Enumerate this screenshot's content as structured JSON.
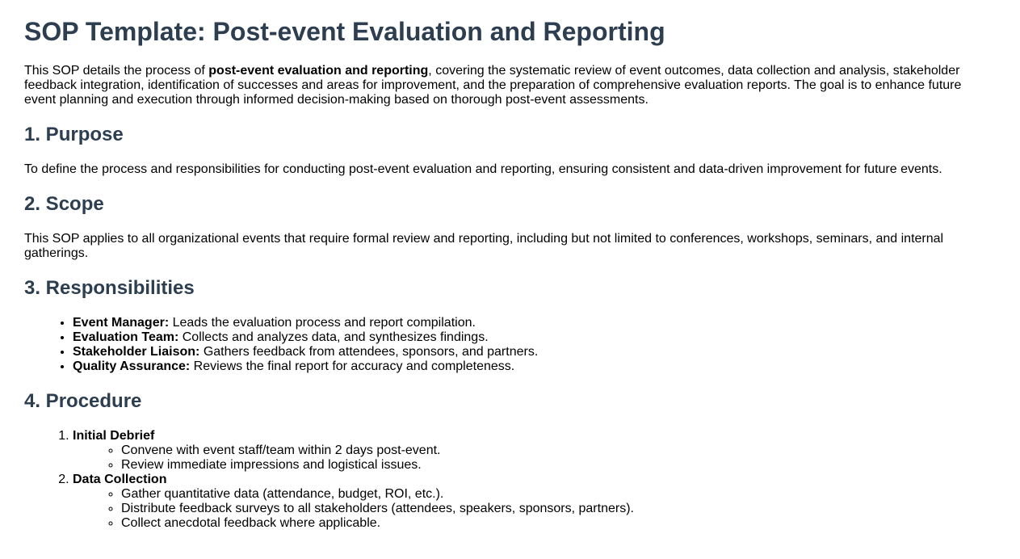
{
  "title": "SOP Template: Post-event Evaluation and Reporting",
  "intro": {
    "before": "This SOP details the process of ",
    "bold": "post-event evaluation and reporting",
    "after": ", covering the systematic review of event outcomes, data collection and analysis, stakeholder feedback integration, identification of successes and areas for improvement, and the preparation of comprehensive evaluation reports. The goal is to enhance future event planning and execution through informed decision-making based on thorough post-event assessments."
  },
  "sections": {
    "purpose": {
      "heading": "1. Purpose",
      "text": "To define the process and responsibilities for conducting post-event evaluation and reporting, ensuring consistent and data-driven improvement for future events."
    },
    "scope": {
      "heading": "2. Scope",
      "text": "This SOP applies to all organizational events that require formal review and reporting, including but not limited to conferences, workshops, seminars, and internal gatherings."
    },
    "responsibilities": {
      "heading": "3. Responsibilities",
      "items": [
        {
          "role": "Event Manager:",
          "desc": " Leads the evaluation process and report compilation."
        },
        {
          "role": "Evaluation Team:",
          "desc": " Collects and analyzes data, and synthesizes findings."
        },
        {
          "role": "Stakeholder Liaison:",
          "desc": " Gathers feedback from attendees, sponsors, and partners."
        },
        {
          "role": "Quality Assurance:",
          "desc": " Reviews the final report for accuracy and completeness."
        }
      ]
    },
    "procedure": {
      "heading": "4. Procedure",
      "steps": [
        {
          "title": "Initial Debrief",
          "items": [
            "Convene with event staff/team within 2 days post-event.",
            "Review immediate impressions and logistical issues."
          ]
        },
        {
          "title": "Data Collection",
          "items": [
            "Gather quantitative data (attendance, budget, ROI, etc.).",
            "Distribute feedback surveys to all stakeholders (attendees, speakers, sponsors, partners).",
            "Collect anecdotal feedback where applicable."
          ]
        }
      ]
    }
  },
  "colors": {
    "heading": "#2c3e50",
    "text": "#000000"
  }
}
